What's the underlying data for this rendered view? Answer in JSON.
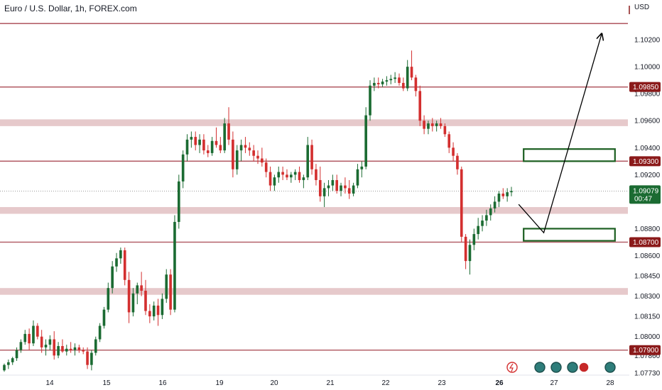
{
  "header": {
    "title": "Euro / U.S. Dollar, 1h, FOREX.com",
    "currency": "USD"
  },
  "colors": {
    "up": "#1b6b32",
    "down": "#d32f2f",
    "level_line": "#b5616a",
    "zone_fill": "#e6c9cb",
    "label_bg": "#8b1a1a",
    "current_bg": "#1b6b32",
    "box_stroke": "#1b5e20"
  },
  "chart_data": {
    "type": "candlestick",
    "title": "Euro / U.S. Dollar, 1h, FOREX.com",
    "ylim": [
      1.0772,
      1.104
    ],
    "y_ticks": [
      "1.10200",
      "1.10000",
      "1.09800",
      "1.09600",
      "1.09400",
      "1.09200",
      "1.08800",
      "1.08600",
      "1.08450",
      "1.08300",
      "1.08150",
      "1.08000",
      "1.07860",
      "1.07730"
    ],
    "x_ticks": [
      {
        "label": "14",
        "pos": 0.08
      },
      {
        "label": "15",
        "pos": 0.17
      },
      {
        "label": "16",
        "pos": 0.26
      },
      {
        "label": "19",
        "pos": 0.35
      },
      {
        "label": "20",
        "pos": 0.44
      },
      {
        "label": "21",
        "pos": 0.53
      },
      {
        "label": "22",
        "pos": 0.62
      },
      {
        "label": "23",
        "pos": 0.71
      },
      {
        "label": "26",
        "pos": 0.8,
        "bold": true
      },
      {
        "label": "27",
        "pos": 0.89
      },
      {
        "label": "28",
        "pos": 0.98
      }
    ],
    "levels": [
      {
        "price": 1.0985,
        "label": "1.09850"
      },
      {
        "price": 1.093,
        "label": "1.09300"
      },
      {
        "price": 1.087,
        "label": "1.08700"
      },
      {
        "price": 1.079,
        "label": "1.07900"
      },
      {
        "price": 1.1032,
        "label": ""
      }
    ],
    "zones": [
      {
        "from": 1.0956,
        "to": 1.0961
      },
      {
        "from": 1.0891,
        "to": 1.0896
      },
      {
        "from": 1.0831,
        "to": 1.0836
      }
    ],
    "current_price": {
      "price": 1.09079,
      "label": "1.09079",
      "countdown": "00:47"
    },
    "boxes": [
      {
        "x0": 0.8,
        "x1": 0.95,
        "y0": 1.093,
        "y1": 1.0939
      },
      {
        "x0": 0.8,
        "x1": 0.95,
        "y0": 1.0871,
        "y1": 1.088
      }
    ],
    "projection": [
      {
        "x": 0.826,
        "y": 1.0898
      },
      {
        "x": 0.866,
        "y": 1.0877
      },
      {
        "x": 0.958,
        "y": 1.1024
      }
    ],
    "candles": [
      [
        1.0775,
        1.078,
        1.0774,
        1.0779
      ],
      [
        1.0779,
        1.0783,
        1.0776,
        1.0781
      ],
      [
        1.0781,
        1.0785,
        1.0779,
        1.0784
      ],
      [
        1.0784,
        1.0792,
        1.0782,
        1.079
      ],
      [
        1.079,
        1.0798,
        1.0788,
        1.0796
      ],
      [
        1.0796,
        1.0805,
        1.0794,
        1.0802
      ],
      [
        1.0802,
        1.0806,
        1.079,
        1.0795
      ],
      [
        1.0795,
        1.0812,
        1.0793,
        1.0808
      ],
      [
        1.0808,
        1.081,
        1.0798,
        1.08
      ],
      [
        1.08,
        1.0805,
        1.0788,
        1.0792
      ],
      [
        1.0792,
        1.0798,
        1.0786,
        1.0794
      ],
      [
        1.0794,
        1.0801,
        1.079,
        1.0798
      ],
      [
        1.0798,
        1.0804,
        1.0783,
        1.0786
      ],
      [
        1.0786,
        1.0796,
        1.0784,
        1.0793
      ],
      [
        1.0793,
        1.0798,
        1.0788,
        1.0789
      ],
      [
        1.0789,
        1.0794,
        1.0786,
        1.0791
      ],
      [
        1.0791,
        1.0796,
        1.0788,
        1.079
      ],
      [
        1.079,
        1.0795,
        1.0786,
        1.0792
      ],
      [
        1.0792,
        1.0794,
        1.0788,
        1.079
      ],
      [
        1.079,
        1.0792,
        1.0787,
        1.0789
      ],
      [
        1.0789,
        1.0792,
        1.0776,
        1.0779
      ],
      [
        1.0779,
        1.079,
        1.0775,
        1.0788
      ],
      [
        1.0788,
        1.08,
        1.0786,
        1.0798
      ],
      [
        1.0798,
        1.081,
        1.0796,
        1.0808
      ],
      [
        1.0808,
        1.0822,
        1.0806,
        1.082
      ],
      [
        1.082,
        1.084,
        1.0818,
        1.0836
      ],
      [
        1.0836,
        1.0856,
        1.0832,
        1.0852
      ],
      [
        1.0852,
        1.0862,
        1.0848,
        1.0858
      ],
      [
        1.0858,
        1.0866,
        1.0854,
        1.0864
      ],
      [
        1.0864,
        1.0866,
        1.0838,
        1.0842
      ],
      [
        1.0842,
        1.0848,
        1.081,
        1.0818
      ],
      [
        1.0818,
        1.0836,
        1.0815,
        1.0832
      ],
      [
        1.0832,
        1.084,
        1.0824,
        1.0838
      ],
      [
        1.0838,
        1.0848,
        1.083,
        1.0834
      ],
      [
        1.0834,
        1.0842,
        1.0816,
        1.0819
      ],
      [
        1.0819,
        1.0824,
        1.081,
        1.0815
      ],
      [
        1.0815,
        1.0826,
        1.0812,
        1.0823
      ],
      [
        1.0823,
        1.0828,
        1.0808,
        1.0816
      ],
      [
        1.0816,
        1.0832,
        1.0813,
        1.0828
      ],
      [
        1.0828,
        1.085,
        1.0825,
        1.0846
      ],
      [
        1.0846,
        1.085,
        1.0816,
        1.082
      ],
      [
        1.082,
        1.089,
        1.0818,
        1.0885
      ],
      [
        1.0885,
        1.092,
        1.088,
        1.0915
      ],
      [
        1.0915,
        1.0938,
        1.091,
        1.0935
      ],
      [
        1.0935,
        1.095,
        1.093,
        1.0946
      ],
      [
        1.0946,
        1.0952,
        1.094,
        1.0948
      ],
      [
        1.0948,
        1.0952,
        1.0938,
        1.0942
      ],
      [
        1.0942,
        1.095,
        1.0936,
        1.0946
      ],
      [
        1.0946,
        1.095,
        1.0935,
        1.0938
      ],
      [
        1.0938,
        1.0942,
        1.0933,
        1.0936
      ],
      [
        1.0936,
        1.0948,
        1.0934,
        1.0945
      ],
      [
        1.0945,
        1.0955,
        1.094,
        1.0942
      ],
      [
        1.0942,
        1.0948,
        1.0936,
        1.0938
      ],
      [
        1.0938,
        1.0962,
        1.0936,
        1.0958
      ],
      [
        1.0958,
        1.097,
        1.0942,
        1.0946
      ],
      [
        1.0946,
        1.0952,
        1.0918,
        1.0924
      ],
      [
        1.0924,
        1.0942,
        1.092,
        1.0938
      ],
      [
        1.0938,
        1.0946,
        1.093,
        1.0942
      ],
      [
        1.0942,
        1.0948,
        1.0936,
        1.094
      ],
      [
        1.094,
        1.0944,
        1.0934,
        1.0938
      ],
      [
        1.0938,
        1.0942,
        1.093,
        1.0934
      ],
      [
        1.0934,
        1.0938,
        1.0928,
        1.0932
      ],
      [
        1.0932,
        1.094,
        1.0926,
        1.0929
      ],
      [
        1.0929,
        1.0932,
        1.0918,
        1.0922
      ],
      [
        1.0922,
        1.0926,
        1.0908,
        1.0912
      ],
      [
        1.0912,
        1.092,
        1.0908,
        1.0918
      ],
      [
        1.0918,
        1.0926,
        1.0914,
        1.0922
      ],
      [
        1.0922,
        1.0926,
        1.0916,
        1.092
      ],
      [
        1.092,
        1.0924,
        1.0916,
        1.0918
      ],
      [
        1.0918,
        1.0922,
        1.0914,
        1.092
      ],
      [
        1.092,
        1.0924,
        1.0916,
        1.0922
      ],
      [
        1.0922,
        1.0926,
        1.0914,
        1.0916
      ],
      [
        1.0916,
        1.092,
        1.091,
        1.0918
      ],
      [
        1.0918,
        1.0948,
        1.0916,
        1.0942
      ],
      [
        1.0942,
        1.0946,
        1.092,
        1.0924
      ],
      [
        1.0924,
        1.0928,
        1.0912,
        1.0916
      ],
      [
        1.0916,
        1.0926,
        1.09,
        1.0904
      ],
      [
        1.0904,
        1.0914,
        1.0896,
        1.091
      ],
      [
        1.091,
        1.0916,
        1.0904,
        1.0912
      ],
      [
        1.0912,
        1.092,
        1.0908,
        1.0916
      ],
      [
        1.0916,
        1.092,
        1.0906,
        1.0908
      ],
      [
        1.0908,
        1.0914,
        1.0904,
        1.0912
      ],
      [
        1.0912,
        1.0918,
        1.0906,
        1.091
      ],
      [
        1.091,
        1.0916,
        1.0902,
        1.0906
      ],
      [
        1.0906,
        1.0914,
        1.0904,
        1.0912
      ],
      [
        1.0912,
        1.0928,
        1.091,
        1.0924
      ],
      [
        1.0924,
        1.093,
        1.0918,
        1.0926
      ],
      [
        1.0926,
        1.097,
        1.0924,
        1.0964
      ],
      [
        1.0964,
        1.099,
        1.096,
        1.0986
      ],
      [
        1.0986,
        1.0992,
        1.0982,
        1.0988
      ],
      [
        1.0988,
        1.0992,
        1.0984,
        1.0987
      ],
      [
        1.0987,
        1.0991,
        1.0985,
        1.0989
      ],
      [
        1.0989,
        1.0993,
        1.0986,
        1.099
      ],
      [
        1.099,
        1.0994,
        1.0987,
        1.0991
      ],
      [
        1.0991,
        1.0996,
        1.0988,
        1.0992
      ],
      [
        1.0992,
        1.0995,
        1.0986,
        1.0988
      ],
      [
        1.0988,
        1.0992,
        1.0982,
        1.0984
      ],
      [
        1.0984,
        1.1005,
        1.0982,
        1.1
      ],
      [
        1.1,
        1.1012,
        1.099,
        1.0992
      ],
      [
        1.0992,
        1.0994,
        1.0978,
        1.0982
      ],
      [
        1.0982,
        1.0986,
        1.0956,
        1.096
      ],
      [
        1.096,
        1.0964,
        1.095,
        1.0954
      ],
      [
        1.0954,
        1.096,
        1.095,
        1.0958
      ],
      [
        1.0958,
        1.0962,
        1.0952,
        1.0956
      ],
      [
        1.0956,
        1.096,
        1.0952,
        1.0958
      ],
      [
        1.0958,
        1.0962,
        1.0954,
        1.0956
      ],
      [
        1.0956,
        1.0958,
        1.0948,
        1.095
      ],
      [
        1.095,
        1.0952,
        1.0936,
        1.094
      ],
      [
        1.094,
        1.0944,
        1.093,
        1.0934
      ],
      [
        1.0934,
        1.0936,
        1.092,
        1.0924
      ],
      [
        1.0924,
        1.0926,
        1.087,
        1.0874
      ],
      [
        1.0874,
        1.0876,
        1.085,
        1.0856
      ],
      [
        1.0856,
        1.0872,
        1.0846,
        1.0868
      ],
      [
        1.0868,
        1.088,
        1.0864,
        1.0876
      ],
      [
        1.0876,
        1.0888,
        1.0872,
        1.0882
      ],
      [
        1.0882,
        1.089,
        1.0878,
        1.0886
      ],
      [
        1.0886,
        1.0894,
        1.0882,
        1.089
      ],
      [
        1.089,
        1.0898,
        1.0886,
        1.0895
      ],
      [
        1.0895,
        1.0904,
        1.0892,
        1.09
      ],
      [
        1.09,
        1.0908,
        1.0896,
        1.0906
      ],
      [
        1.0906,
        1.091,
        1.0902,
        1.0904
      ],
      [
        1.0904,
        1.091,
        1.09,
        1.0907
      ],
      [
        1.0907,
        1.0911,
        1.0904,
        1.09079
      ]
    ]
  }
}
